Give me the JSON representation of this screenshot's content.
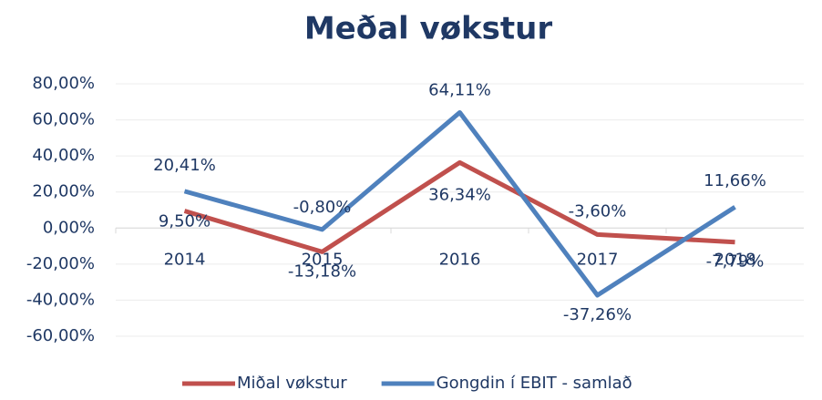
{
  "chart_data": {
    "type": "line",
    "title": "Meðal vøkstur",
    "categories": [
      "2014",
      "2015",
      "2016",
      "2017",
      "2018"
    ],
    "series": [
      {
        "name": "Miðal vøkstur",
        "color": "#c0504d",
        "values": [
          9.5,
          -13.18,
          36.34,
          -3.6,
          -7.79
        ],
        "value_labels": [
          "9,50%",
          "-13,18%",
          "36,34%",
          "-3,60%",
          "-7,79%"
        ]
      },
      {
        "name": "Gongdin í EBIT - samlað",
        "color": "#4f81bd",
        "values": [
          20.41,
          -0.8,
          64.11,
          -37.26,
          11.66
        ],
        "value_labels": [
          "20,41%",
          "-0,80%",
          "64,11%",
          "-37,26%",
          "11,66%"
        ]
      }
    ],
    "ylim": [
      -60,
      80
    ],
    "yticks": [
      {
        "value": -60,
        "label": "-60,00%"
      },
      {
        "value": -40,
        "label": "-40,00%"
      },
      {
        "value": -20,
        "label": "-20,00%"
      },
      {
        "value": 0,
        "label": "0,00%"
      },
      {
        "value": 20,
        "label": "20,00%"
      },
      {
        "value": 40,
        "label": "40,00%"
      },
      {
        "value": 60,
        "label": "60,00%"
      },
      {
        "value": 80,
        "label": "80,00%"
      }
    ],
    "grid": true,
    "legend": "bottom"
  }
}
